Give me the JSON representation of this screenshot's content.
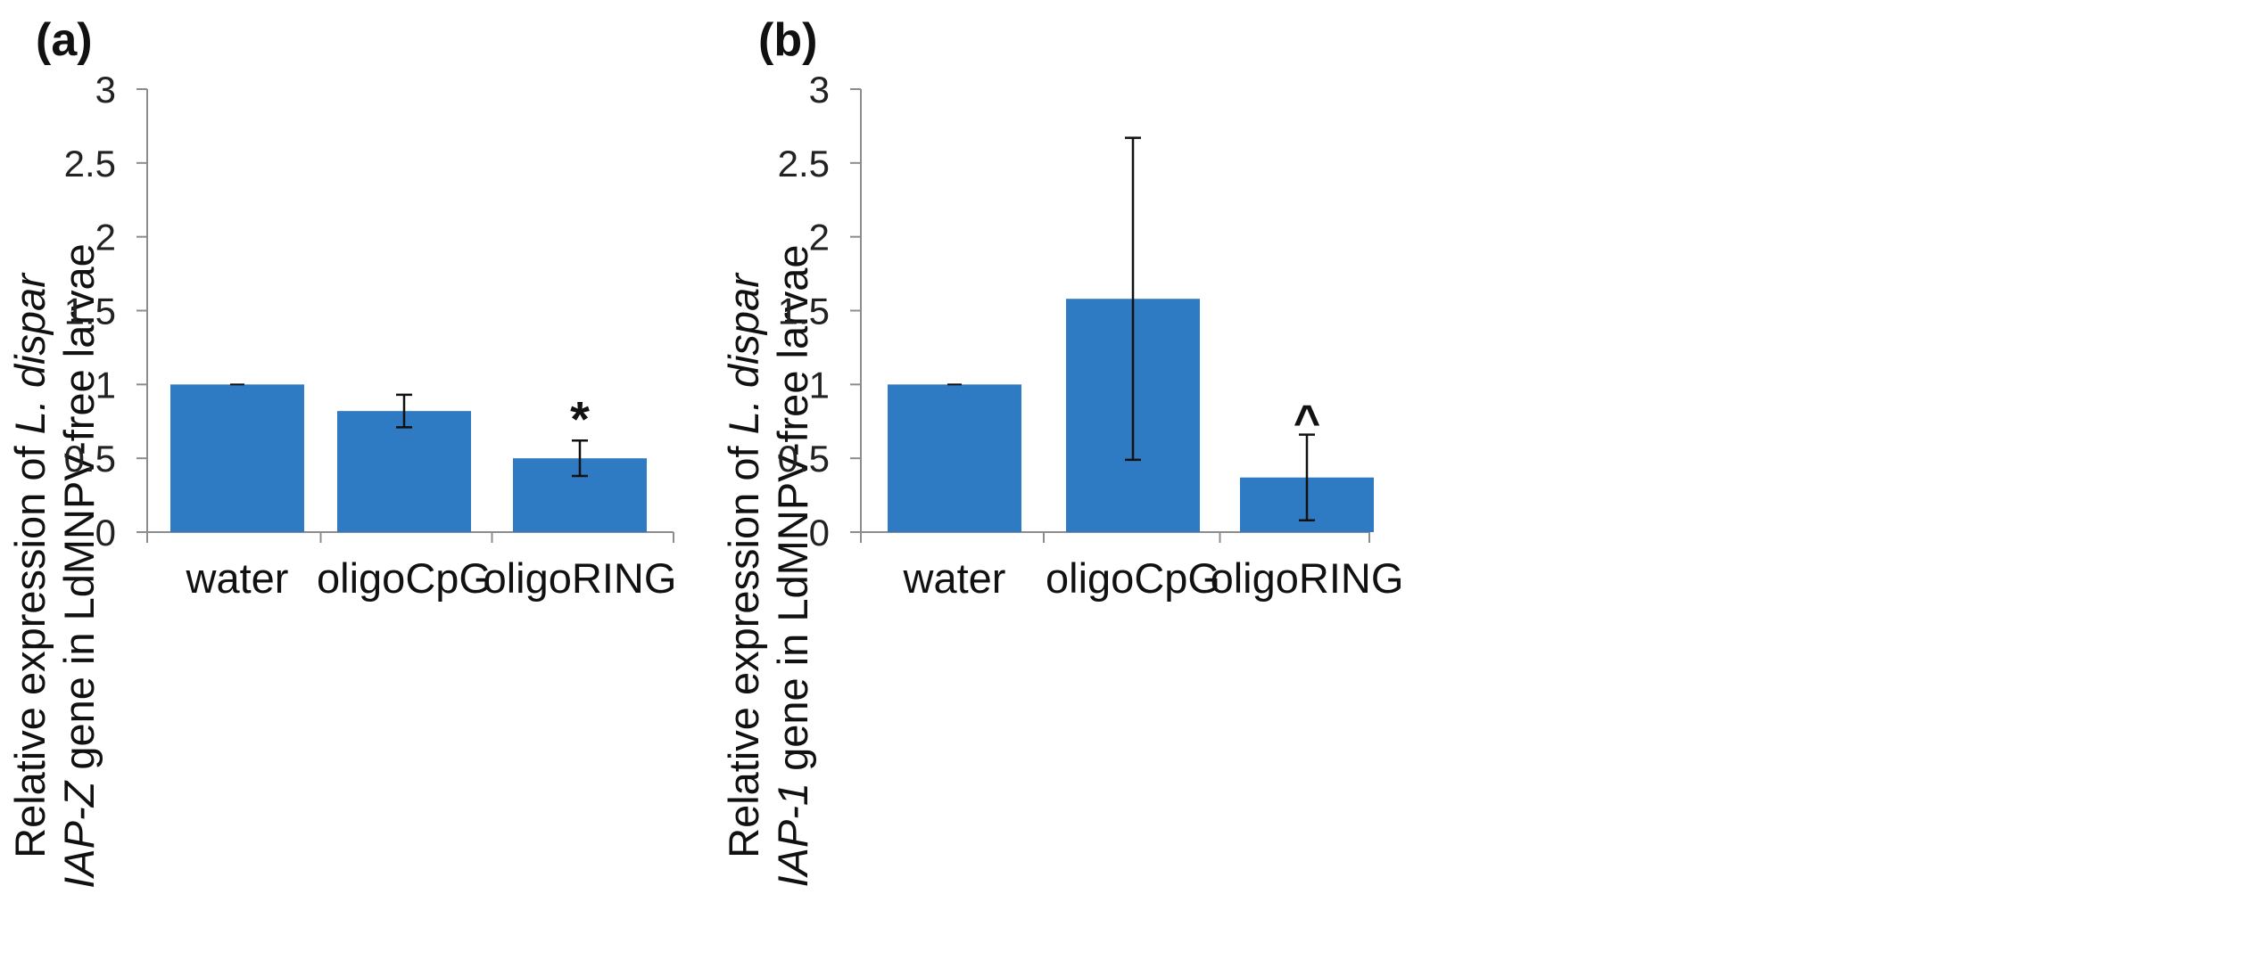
{
  "chart_data": [
    {
      "type": "bar",
      "panel_label": "(a)",
      "categories": [
        "water",
        "oligoCpG",
        "oligoRING"
      ],
      "values": [
        1.0,
        0.82,
        0.5
      ],
      "error": [
        0.0,
        0.11,
        0.12
      ],
      "annotations": [
        "",
        "",
        "*"
      ],
      "ylabel_line1_plain": "Relative expression of ",
      "ylabel_line1_italic": "L. dispar",
      "ylabel_line2_italic": "IAP-Z",
      "ylabel_line2_plain": " gene in LdMNPV-free larvae",
      "ylim": [
        0,
        3
      ],
      "yticks": [
        "0",
        "0.5",
        "1",
        "1.5",
        "2",
        "2.5",
        "3"
      ],
      "grid": false
    },
    {
      "type": "bar",
      "panel_label": "(b)",
      "categories": [
        "water",
        "oligoCpG",
        "oligoRING"
      ],
      "values": [
        1.0,
        1.58,
        0.37
      ],
      "error": [
        0.0,
        1.09,
        0.29
      ],
      "annotations": [
        "",
        "",
        "^"
      ],
      "ylabel_line1_plain": "Relative expression of ",
      "ylabel_line1_italic": "L. dispar",
      "ylabel_line2_italic": "IAP-1",
      "ylabel_line2_plain": " gene in LdMNPV-free larvae",
      "ylim": [
        0,
        3
      ],
      "yticks": [
        "0",
        "0.5",
        "1",
        "1.5",
        "2",
        "2.5",
        "3"
      ],
      "grid": false
    }
  ],
  "colors": {
    "bar": "#2E7BC4",
    "axis": "#8C8C8C",
    "text": "#222222"
  }
}
